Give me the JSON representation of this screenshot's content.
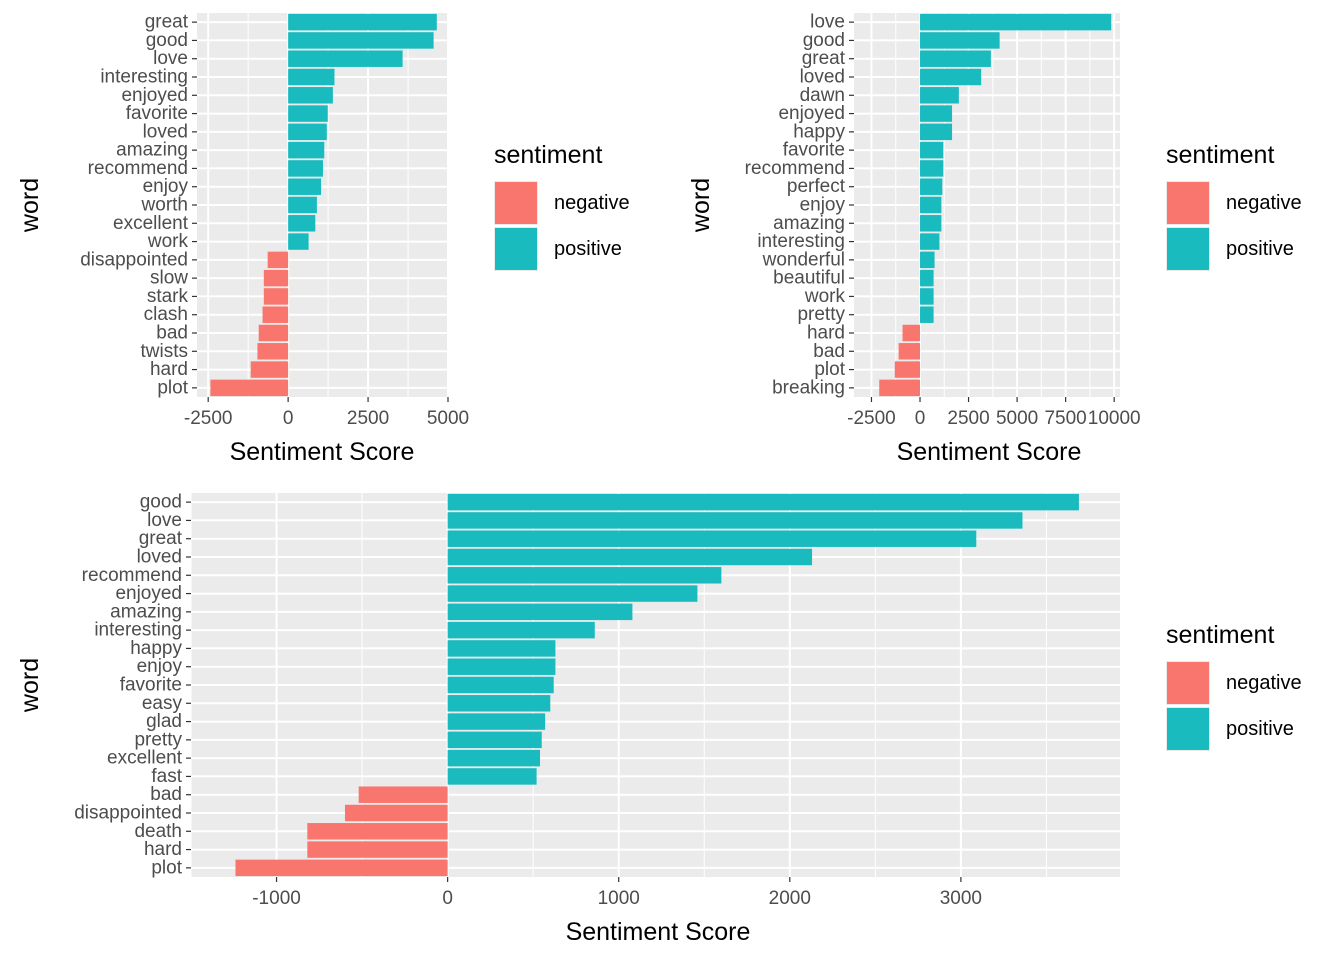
{
  "colors": {
    "negative": "#F8766D",
    "positive": "#19BBBF",
    "panel_background": "#EBEBEB",
    "grid": "#FFFFFF",
    "text": "#000000",
    "tick_text": "#4D4D4D"
  },
  "chart_data": [
    {
      "type": "bar",
      "orientation": "horizontal",
      "xlabel": "Sentiment Score",
      "ylabel": "word",
      "xlim": [
        -2850,
        5000
      ],
      "x_ticks": [
        -2500,
        0,
        2500,
        5000
      ],
      "grid": true,
      "legend": {
        "title": "sentiment",
        "position": "right",
        "entries": [
          "negative",
          "positive"
        ]
      },
      "categories": [
        "great",
        "good",
        "love",
        "interesting",
        "enjoyed",
        "favorite",
        "loved",
        "amazing",
        "recommend",
        "enjoy",
        "worth",
        "excellent",
        "work",
        "disappointed",
        "slow",
        "stark",
        "clash",
        "bad",
        "twists",
        "hard",
        "plot"
      ],
      "values": [
        4650,
        4550,
        3580,
        1450,
        1400,
        1240,
        1210,
        1130,
        1090,
        1030,
        900,
        850,
        640,
        -640,
        -760,
        -760,
        -800,
        -920,
        -960,
        -1170,
        -2430
      ],
      "sentiment": [
        "positive",
        "positive",
        "positive",
        "positive",
        "positive",
        "positive",
        "positive",
        "positive",
        "positive",
        "positive",
        "positive",
        "positive",
        "positive",
        "negative",
        "negative",
        "negative",
        "negative",
        "negative",
        "negative",
        "negative",
        "negative"
      ]
    },
    {
      "type": "bar",
      "orientation": "horizontal",
      "xlabel": "Sentiment Score",
      "ylabel": "word",
      "xlim": [
        -3400,
        10300
      ],
      "x_ticks": [
        -2500,
        0,
        2500,
        5000,
        7500,
        10000
      ],
      "x_tick_labels": [
        "-2500",
        "0",
        "2500",
        "5000",
        "7500",
        "10000"
      ],
      "grid": true,
      "legend": {
        "title": "sentiment",
        "position": "right",
        "entries": [
          "negative",
          "positive"
        ]
      },
      "categories": [
        "love",
        "good",
        "great",
        "loved",
        "dawn",
        "enjoyed",
        "happy",
        "favorite",
        "recommend",
        "perfect",
        "enjoy",
        "amazing",
        "interesting",
        "wonderful",
        "beautiful",
        "work",
        "pretty",
        "hard",
        "bad",
        "plot",
        "breaking"
      ],
      "values": [
        9850,
        4100,
        3650,
        3150,
        2000,
        1650,
        1650,
        1200,
        1200,
        1150,
        1100,
        1100,
        1000,
        750,
        700,
        700,
        700,
        -900,
        -1100,
        -1300,
        -2100
      ],
      "sentiment": [
        "positive",
        "positive",
        "positive",
        "positive",
        "positive",
        "positive",
        "positive",
        "positive",
        "positive",
        "positive",
        "positive",
        "positive",
        "positive",
        "positive",
        "positive",
        "positive",
        "positive",
        "negative",
        "negative",
        "negative",
        "negative"
      ]
    },
    {
      "type": "bar",
      "orientation": "horizontal",
      "xlabel": "Sentiment Score",
      "ylabel": "word",
      "xlim": [
        -1500,
        3930
      ],
      "x_ticks": [
        -1000,
        0,
        1000,
        2000,
        3000
      ],
      "grid": true,
      "legend": {
        "title": "sentiment",
        "position": "right",
        "entries": [
          "negative",
          "positive"
        ]
      },
      "categories": [
        "good",
        "love",
        "great",
        "loved",
        "recommend",
        "enjoyed",
        "amazing",
        "interesting",
        "happy",
        "enjoy",
        "favorite",
        "easy",
        "glad",
        "pretty",
        "excellent",
        "fast",
        "bad",
        "disappointed",
        "death",
        "hard",
        "plot"
      ],
      "values": [
        3690,
        3360,
        3090,
        2130,
        1600,
        1460,
        1080,
        860,
        630,
        630,
        620,
        600,
        570,
        550,
        540,
        520,
        -520,
        -600,
        -820,
        -820,
        -1240
      ],
      "sentiment": [
        "positive",
        "positive",
        "positive",
        "positive",
        "positive",
        "positive",
        "positive",
        "positive",
        "positive",
        "positive",
        "positive",
        "positive",
        "positive",
        "positive",
        "positive",
        "positive",
        "negative",
        "negative",
        "negative",
        "negative",
        "negative"
      ]
    }
  ]
}
